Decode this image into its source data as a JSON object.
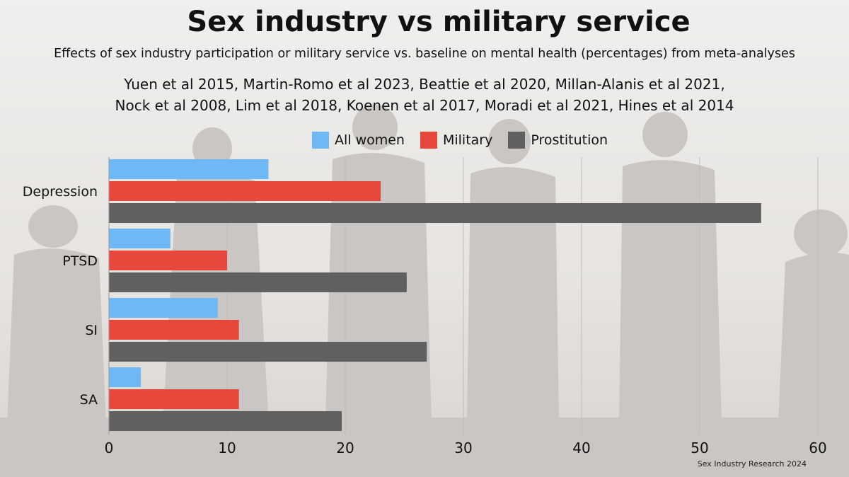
{
  "header": {
    "title": "Sex industry vs military service",
    "subtitle": "Effects of sex industry participation or military service vs. baseline on mental health (percentages) from meta-analyses",
    "sources_line1": "Yuen et al 2015, Martin-Romo et al 2023, Beattie et al 2020, Millan-Alanis et al 2021,",
    "sources_line2": "Nock et al 2008, Lim et al 2018, Koenen et al 2017, Moradi et al 2021, Hines et al 2014"
  },
  "footer": {
    "credit": "Sex Industry Research 2024"
  },
  "chart_data": {
    "type": "bar",
    "orientation": "horizontal",
    "categories": [
      "Depression",
      "PTSD",
      "SI",
      "SA"
    ],
    "series": [
      {
        "name": "All women",
        "color": "#6db8f5",
        "values": [
          13.5,
          5.2,
          9.2,
          2.7
        ]
      },
      {
        "name": "Military",
        "color": "#e8473b",
        "values": [
          23.0,
          10.0,
          11.0,
          11.0
        ]
      },
      {
        "name": "Prostitution",
        "color": "#606060",
        "values": [
          55.2,
          25.2,
          26.9,
          19.7
        ]
      }
    ],
    "xlim": [
      0,
      60
    ],
    "xticks": [
      0,
      10,
      20,
      30,
      40,
      50,
      60
    ],
    "grid": true,
    "legend_position": "top"
  }
}
